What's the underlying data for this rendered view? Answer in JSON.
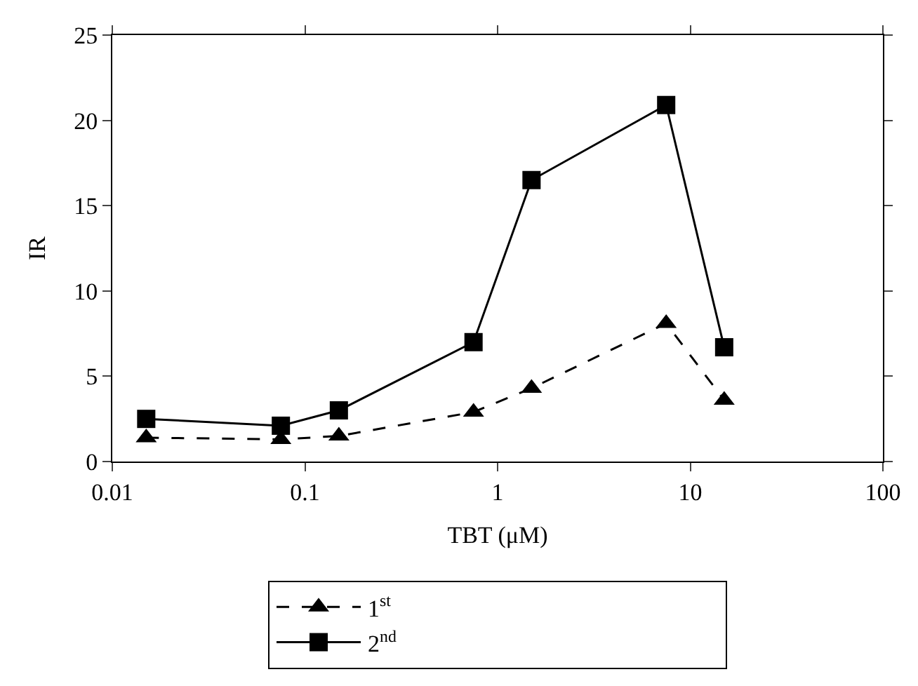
{
  "chart_data": {
    "type": "line",
    "xlabel": "TBT (μM)",
    "ylabel": "IR",
    "x": [
      0.015,
      0.075,
      0.15,
      0.75,
      1.5,
      7.5,
      15
    ],
    "series": [
      {
        "name": "1$^{st}$",
        "color": "#000000",
        "marker": "triangle",
        "line_style": "dashed",
        "values": [
          1.4,
          1.3,
          1.5,
          2.9,
          4.3,
          8.1,
          3.6
        ]
      },
      {
        "name": "2$^{nd}$",
        "color": "#000000",
        "marker": "square",
        "line_style": "solid",
        "values": [
          2.5,
          2.1,
          3.0,
          7.0,
          16.5,
          20.9,
          6.7
        ]
      }
    ],
    "log": "x",
    "xlim": [
      0.01,
      100
    ],
    "xticks": [
      0.01,
      0.1,
      1,
      10,
      100
    ],
    "ylim": [
      0,
      25
    ],
    "yticks": [
      0,
      5,
      10,
      15,
      20,
      25
    ],
    "grid": false,
    "legend": "bottom"
  }
}
